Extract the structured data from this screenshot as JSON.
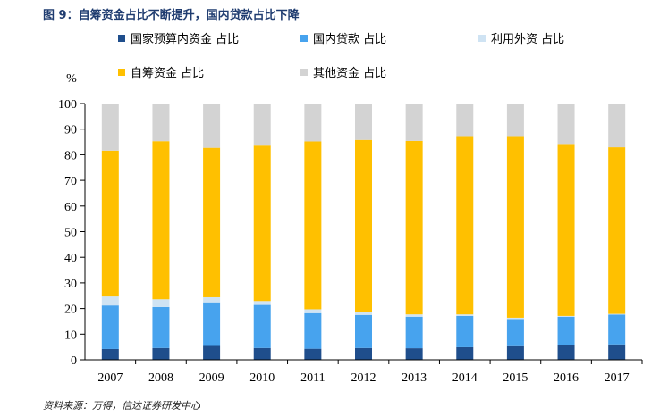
{
  "figure": {
    "title": "图 9：自筹资金占比不断提升，国内贷款占比下降",
    "source": "资料来源：万得，信达证券研发中心"
  },
  "chart_data": {
    "type": "bar",
    "stacked": true,
    "title": "",
    "xlabel": "",
    "ylabel": "%",
    "ylim": [
      0,
      100
    ],
    "yticks": [
      0,
      10,
      20,
      30,
      40,
      50,
      60,
      70,
      80,
      90,
      100
    ],
    "grid": false,
    "legend_position": "top",
    "categories": [
      "2007",
      "2008",
      "2009",
      "2010",
      "2011",
      "2012",
      "2013",
      "2014",
      "2015",
      "2016",
      "2017"
    ],
    "series": [
      {
        "name": "国家预算内资金 占比",
        "color": "#1f4e8c",
        "values": [
          4.2,
          4.6,
          5.4,
          4.6,
          4.3,
          4.6,
          4.5,
          4.9,
          5.3,
          5.9,
          6.0
        ]
      },
      {
        "name": "国内贷款 占比",
        "color": "#47a3ee",
        "values": [
          17.0,
          16.0,
          17.0,
          16.8,
          13.9,
          12.9,
          12.3,
          12.2,
          10.6,
          10.9,
          11.6
        ]
      },
      {
        "name": "利用外资 占比",
        "color": "#cfe3f3",
        "values": [
          3.5,
          3.0,
          2.0,
          1.5,
          1.5,
          1.0,
          0.9,
          0.6,
          0.5,
          0.3,
          0.3
        ]
      },
      {
        "name": "自筹资金 占比",
        "color": "#ffc000",
        "values": [
          56.9,
          61.7,
          58.3,
          61.0,
          65.5,
          67.3,
          67.7,
          69.6,
          70.9,
          67.1,
          65.0
        ]
      },
      {
        "name": "其他资金 占比",
        "color": "#d3d3d3",
        "values": [
          18.4,
          14.7,
          17.3,
          16.1,
          14.8,
          14.2,
          14.6,
          12.7,
          12.7,
          15.8,
          17.1
        ]
      }
    ]
  }
}
